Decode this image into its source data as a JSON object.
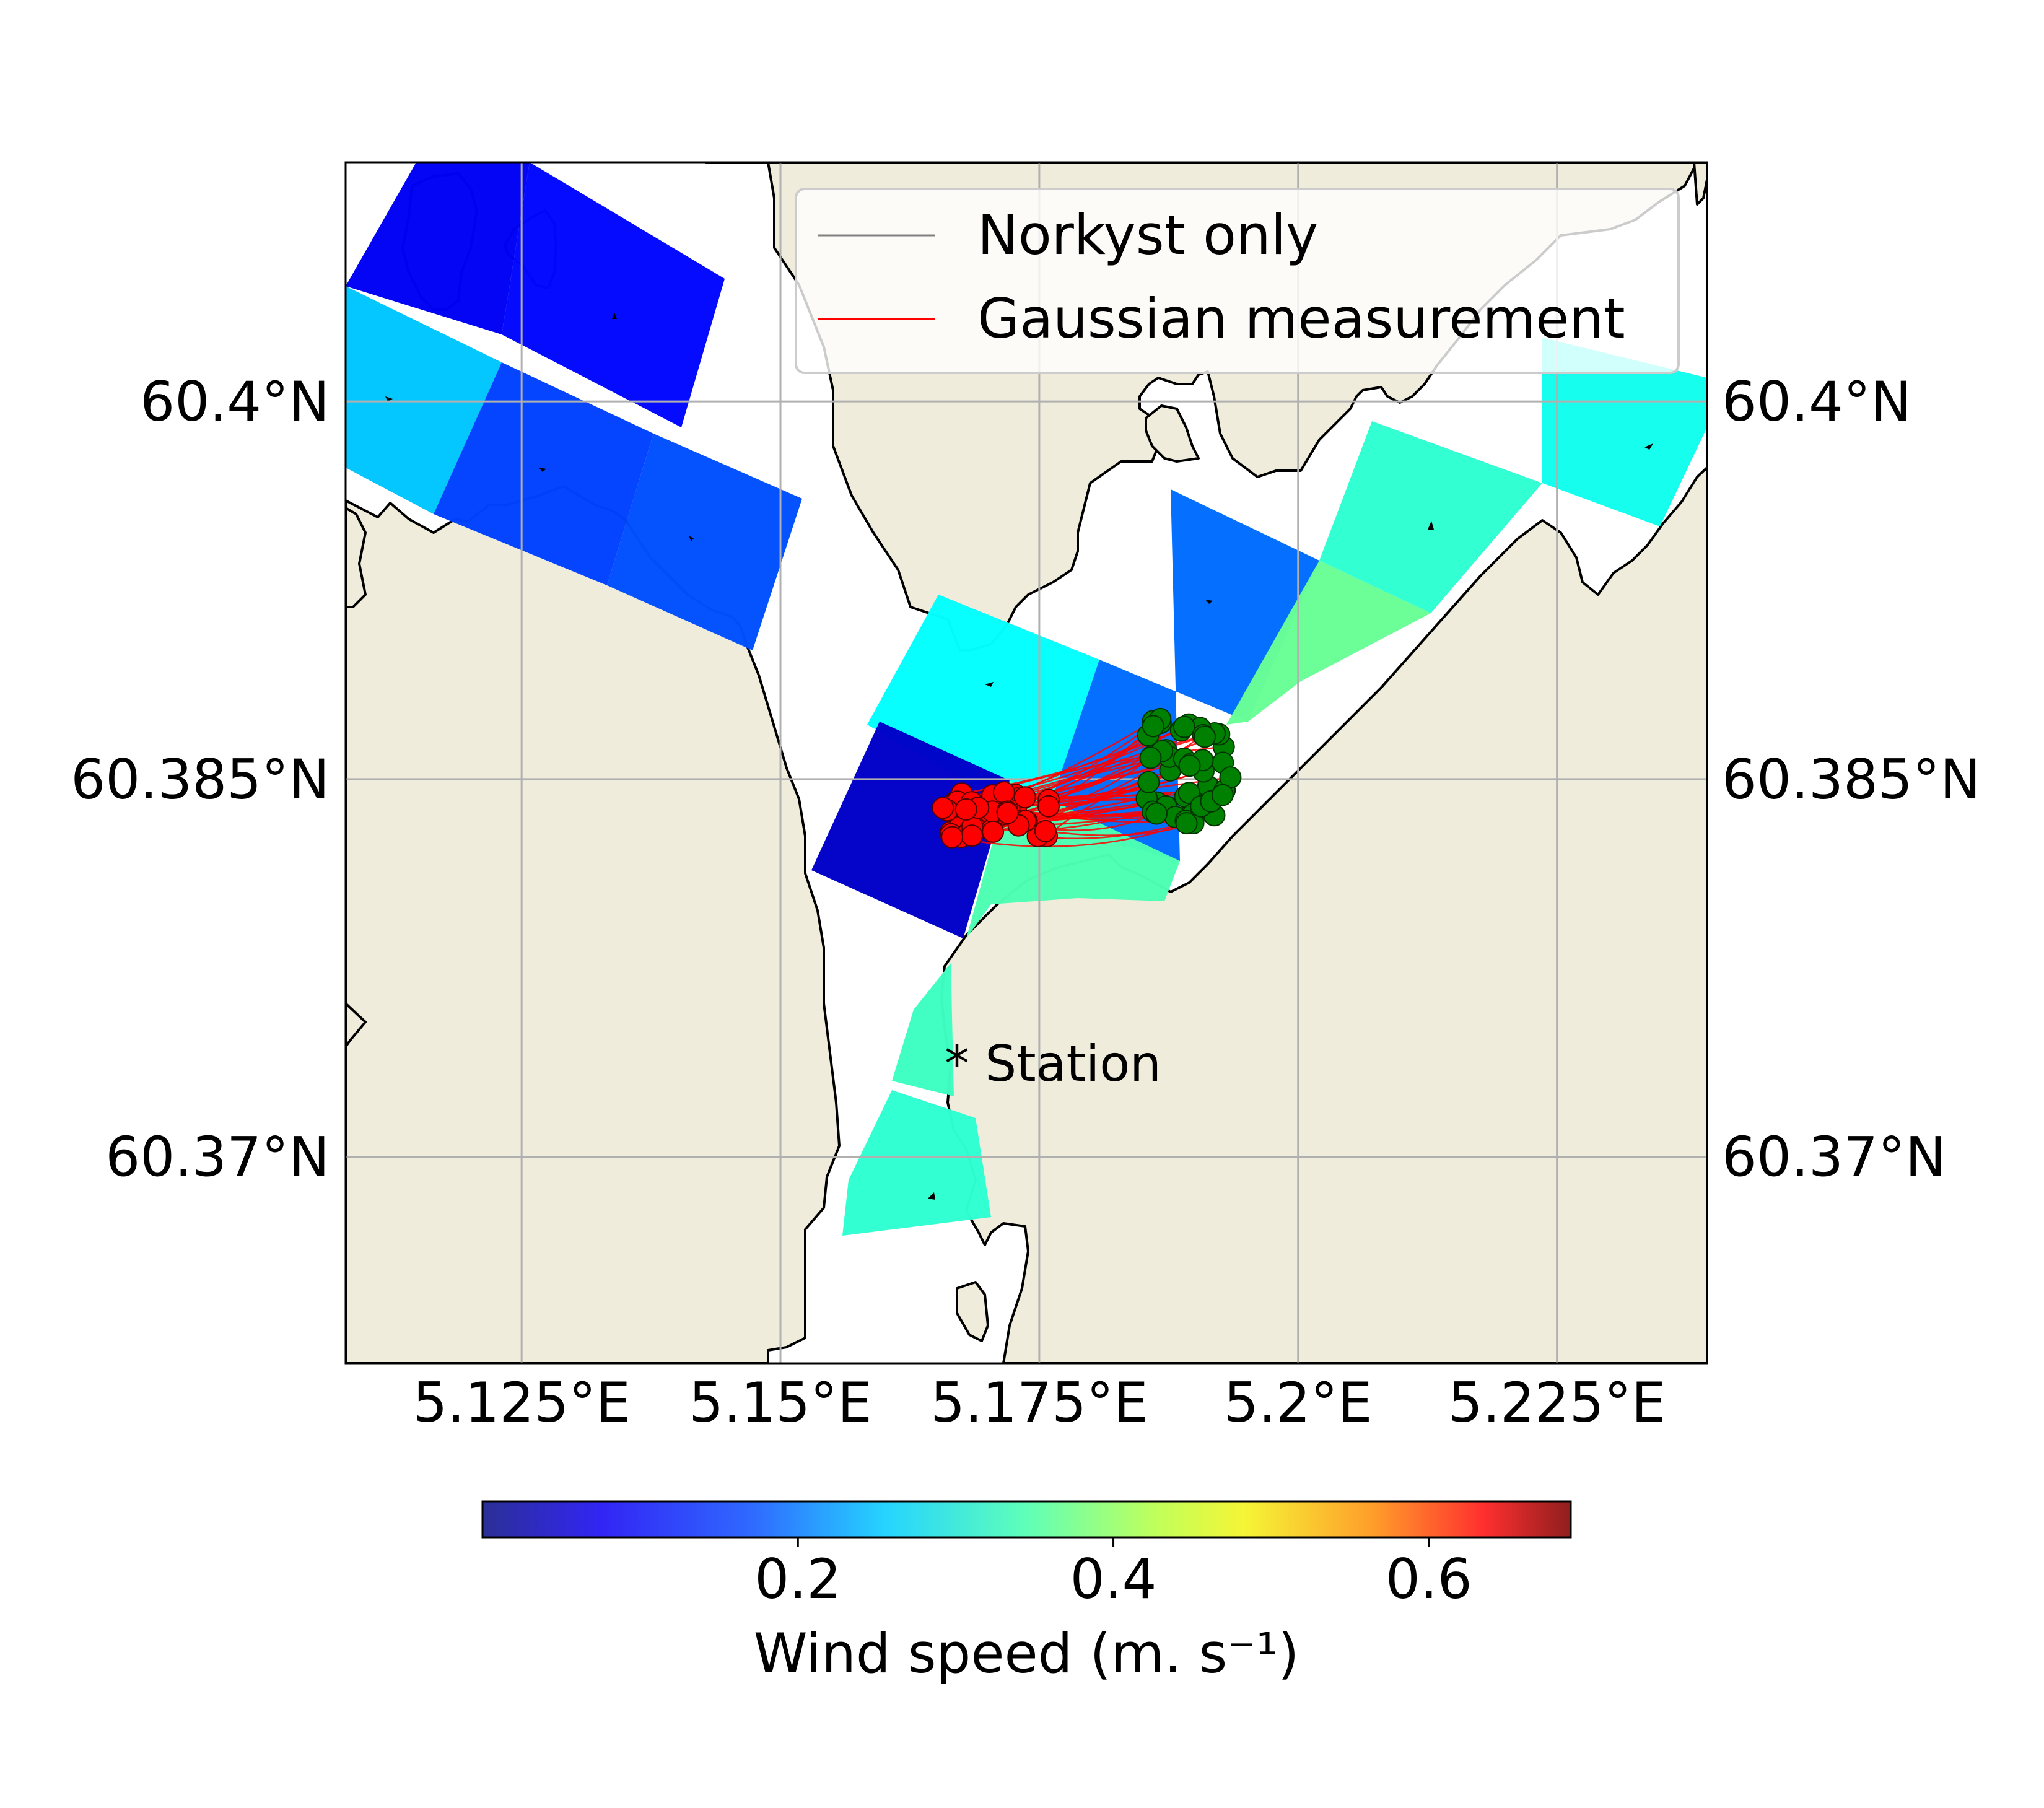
{
  "map": {
    "lon_range": [
      5.108,
      5.2395
    ],
    "lat_range": [
      60.3618,
      60.4095
    ],
    "lon_ticks": [
      {
        "value": 5.125,
        "label": "5.125°E"
      },
      {
        "value": 5.15,
        "label": "5.15°E"
      },
      {
        "value": 5.175,
        "label": "5.175°E"
      },
      {
        "value": 5.2,
        "label": "5.2°E"
      },
      {
        "value": 5.225,
        "label": "5.225°E"
      }
    ],
    "lat_ticks": [
      {
        "value": 60.4,
        "label": "60.4°N"
      },
      {
        "value": 60.385,
        "label": "60.385°N"
      },
      {
        "value": 60.37,
        "label": "60.37°N"
      }
    ],
    "station_label": "* Station",
    "gridlines": true,
    "land_color": "#efecdb",
    "sea_color": "#ffffff"
  },
  "legend": {
    "placement": "top-right",
    "items": [
      {
        "label": "Norkyst only",
        "color": "#808080"
      },
      {
        "label": "Gaussian measurement",
        "color": "#ff0000"
      }
    ]
  },
  "colorbar": {
    "colormap": "jet",
    "range": [
      0.0,
      0.69
    ],
    "ticks": [
      {
        "value": 0.2,
        "label": "0.2"
      },
      {
        "value": 0.4,
        "label": "0.4"
      },
      {
        "value": 0.6,
        "label": "0.6"
      }
    ],
    "label": "Wind speed (m. s⁻¹)"
  },
  "chart_data": {
    "type": "map",
    "xlabel": "",
    "ylabel": "",
    "wind_cells_value": [
      0.08,
      0.09,
      0.22,
      0.13,
      0.14,
      0.26,
      0.16,
      0.05,
      0.31,
      0.29,
      0.27,
      0.33,
      0.3,
      0.29
    ],
    "particle_start": {
      "lon_center": 5.171,
      "lat_center": 60.3836,
      "color": "#ff0000",
      "count": 50
    },
    "particle_end": {
      "lon_center": 5.1895,
      "lat_center": 60.3853,
      "color": "#008000",
      "count": 50
    },
    "colors": {
      "particle_start": "#ff0000",
      "particle_end": "#008000",
      "trajectory": "#ff0000",
      "norkyst": "#808080"
    }
  }
}
